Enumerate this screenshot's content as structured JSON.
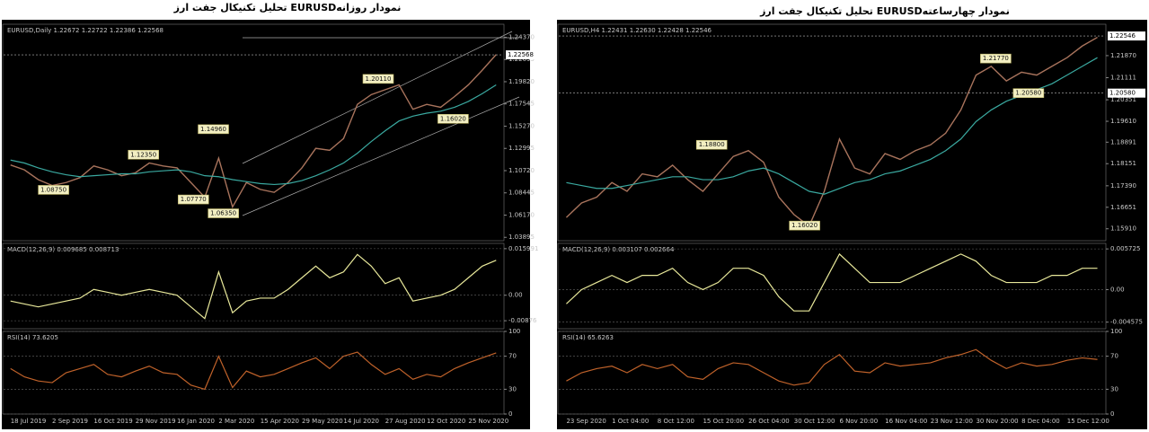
{
  "chart_data": [
    {
      "type": "line",
      "title": "تحلیل تکنیکال جفت ارز  EURUSDنمودار روزانه",
      "categories": [
        "18 Jul 2019",
        null,
        null,
        "2 Sep 2019",
        null,
        null,
        "16 Oct 2019",
        null,
        null,
        "29 Nov 2019",
        null,
        null,
        "16 Jan 2020",
        null,
        null,
        "2 Mar 2020",
        null,
        null,
        "15 Apr 2020",
        null,
        null,
        "29 May 2020",
        null,
        null,
        "14 Jul 2020",
        null,
        null,
        "27 Aug 2020",
        null,
        null,
        "12 Oct 2020",
        null,
        null,
        "25 Nov 2020",
        null,
        null
      ],
      "panes": [
        {
          "header": "EURUSD,Daily  1.22672 1.22722 1.22386 1.22568",
          "ylim": [
            1.0355,
            1.257
          ],
          "yticks": [
            {
              "value": 1.2437,
              "label": "1.24370"
            },
            1.22095,
            {
              "value": 1.1982,
              "label": "1.19820"
            },
            1.17545,
            {
              "value": 1.1527,
              "label": "1.15270"
            },
            1.12995,
            {
              "value": 1.1072,
              "label": "1.10720"
            },
            1.08445,
            {
              "value": 1.0617,
              "label": "1.06170"
            },
            1.03895
          ],
          "grid": false,
          "series": [
            {
              "color": "#a8735c",
              "values": [
                1.113,
                1.108,
                1.098,
                1.092,
                1.095,
                1.1,
                1.112,
                1.108,
                1.102,
                1.105,
                1.115,
                1.112,
                1.11,
                1.095,
                1.08,
                1.12,
                1.07,
                1.095,
                1.088,
                1.085,
                1.095,
                1.11,
                1.13,
                1.128,
                1.14,
                1.175,
                1.185,
                1.19,
                1.195,
                1.17,
                1.175,
                1.172,
                1.183,
                1.195,
                1.21,
                1.226
              ]
            },
            {
              "color": "#3aa9a0",
              "values": [
                1.118,
                1.115,
                1.11,
                1.106,
                1.103,
                1.101,
                1.102,
                1.103,
                1.104,
                1.104,
                1.106,
                1.107,
                1.108,
                1.106,
                1.102,
                1.101,
                1.098,
                1.096,
                1.094,
                1.093,
                1.094,
                1.097,
                1.102,
                1.108,
                1.115,
                1.125,
                1.137,
                1.148,
                1.158,
                1.163,
                1.166,
                1.168,
                1.172,
                1.178,
                1.186,
                1.195
              ]
            }
          ],
          "annotations": [
            {
              "value": 1.0875,
              "label": "1.08750"
            },
            {
              "value": 1.1235,
              "label": "1.12350"
            },
            {
              "value": 1.1496,
              "label": "1.14960"
            },
            {
              "value": 1.0777,
              "label": "1.07770"
            },
            {
              "value": 1.0635,
              "label": "1.06350"
            },
            {
              "value": 1.2011,
              "label": "1.20110"
            },
            {
              "value": 1.1602,
              "label": "1.16020"
            }
          ],
          "levels": [
            1.22568
          ]
        },
        {
          "header": "MACD(12,26,9) 0.009685 0.008713",
          "ylim": [
            -0.0115,
            0.0178
          ],
          "yticks": [
            0.015991,
            {
              "value": 0,
              "label": "0.00"
            },
            -0.00876
          ],
          "grid": true,
          "series": [
            {
              "color": "#e8e89a",
              "values": [
                -0.002,
                -0.003,
                -0.004,
                -0.003,
                -0.002,
                -0.001,
                0.002,
                0.001,
                0.0,
                0.001,
                0.002,
                0.001,
                0.0,
                -0.004,
                -0.008,
                0.008,
                -0.006,
                -0.002,
                -0.001,
                -0.001,
                0.002,
                0.006,
                0.01,
                0.006,
                0.008,
                0.014,
                0.01,
                0.004,
                0.006,
                -0.002,
                -0.001,
                0.0,
                0.002,
                0.006,
                0.01,
                0.012
              ]
            }
          ]
        },
        {
          "header": "RSI(14) 73.6205",
          "ylim": [
            0,
            100
          ],
          "yticks": [
            100,
            70,
            30,
            0
          ],
          "grid": true,
          "series": [
            {
              "color": "#c0622a",
              "values": [
                55,
                45,
                40,
                38,
                50,
                55,
                60,
                48,
                45,
                52,
                58,
                50,
                48,
                35,
                30,
                70,
                32,
                52,
                45,
                48,
                55,
                62,
                68,
                55,
                70,
                75,
                60,
                48,
                55,
                42,
                48,
                45,
                55,
                62,
                68,
                74
              ]
            }
          ]
        }
      ]
    },
    {
      "type": "line",
      "title": "تحلیل تکنیکال جفت ارز  EURUSDنمودار چهارساعته",
      "categories": [
        "23 Sep 2020",
        null,
        null,
        "1 Oct 04:00",
        null,
        null,
        "8 Oct 12:00",
        null,
        null,
        "15 Oct 20:00",
        null,
        null,
        "26 Oct 04:00",
        null,
        null,
        "30 Oct 12:00",
        null,
        null,
        "6 Nov 20:00",
        null,
        null,
        "16 Nov 04:00",
        null,
        null,
        "23 Nov 12:00",
        null,
        null,
        "30 Nov 20:00",
        null,
        null,
        "8 Dec 04:00",
        null,
        null,
        "15 Dec 12:00",
        null,
        null
      ],
      "panes": [
        {
          "header": "EURUSD,H4  1.22431 1.22630 1.22428 1.22546",
          "ylim": [
            1.155,
            1.2295
          ],
          "yticks": [
            {
              "value": 1.2187,
              "label": "1.21870"
            },
            1.21111,
            1.20351,
            {
              "value": 1.1961,
              "label": "1.19610"
            },
            1.18891,
            1.18151,
            {
              "value": 1.1739,
              "label": "1.17390"
            },
            1.16651,
            {
              "value": 1.1591,
              "label": "1.15910"
            }
          ],
          "grid": false,
          "series": [
            {
              "color": "#a8735c",
              "values": [
                1.163,
                1.168,
                1.17,
                1.175,
                1.172,
                1.178,
                1.177,
                1.181,
                1.176,
                1.172,
                1.178,
                1.184,
                1.186,
                1.182,
                1.17,
                1.164,
                1.16,
                1.172,
                1.19,
                1.18,
                1.178,
                1.185,
                1.183,
                1.186,
                1.188,
                1.192,
                1.2,
                1.212,
                1.215,
                1.21,
                1.213,
                1.212,
                1.215,
                1.218,
                1.222,
                1.225
              ]
            },
            {
              "color": "#3aa9a0",
              "values": [
                1.175,
                1.174,
                1.173,
                1.173,
                1.174,
                1.175,
                1.176,
                1.177,
                1.177,
                1.176,
                1.176,
                1.177,
                1.179,
                1.18,
                1.178,
                1.175,
                1.172,
                1.171,
                1.173,
                1.175,
                1.176,
                1.178,
                1.179,
                1.181,
                1.183,
                1.186,
                1.19,
                1.196,
                1.2,
                1.203,
                1.205,
                1.207,
                1.209,
                1.212,
                1.215,
                1.218
              ]
            }
          ],
          "annotations": [
            {
              "value": 1.2177,
              "label": "1.21770"
            },
            {
              "value": 1.2058,
              "label": "1.20580"
            },
            {
              "value": 1.188,
              "label": "1.18800"
            },
            {
              "value": 1.1602,
              "label": "1.16020"
            }
          ],
          "levels": [
            1.22546,
            {
              "value": 1.2058,
              "label": "1.20580"
            }
          ]
        },
        {
          "header": "MACD(12,26,9) 0.003107 0.002664",
          "ylim": [
            -0.0055,
            0.0065
          ],
          "yticks": [
            0.005725,
            {
              "value": 0,
              "label": "0.00"
            },
            -0.004575
          ],
          "grid": true,
          "series": [
            {
              "color": "#e8e89a",
              "values": [
                -0.002,
                0.0,
                0.001,
                0.002,
                0.001,
                0.002,
                0.002,
                0.003,
                0.001,
                0.0,
                0.001,
                0.003,
                0.003,
                0.002,
                -0.001,
                -0.003,
                -0.003,
                0.001,
                0.005,
                0.003,
                0.001,
                0.001,
                0.001,
                0.002,
                0.003,
                0.004,
                0.005,
                0.004,
                0.002,
                0.001,
                0.001,
                0.001,
                0.002,
                0.002,
                0.003,
                0.003
              ]
            }
          ]
        },
        {
          "header": "RSI(14) 65.6263",
          "ylim": [
            0,
            100
          ],
          "yticks": [
            100,
            70,
            30,
            0
          ],
          "grid": true,
          "series": [
            {
              "color": "#c0622a",
              "values": [
                40,
                50,
                55,
                58,
                50,
                60,
                55,
                60,
                45,
                42,
                55,
                62,
                60,
                50,
                40,
                35,
                38,
                60,
                72,
                52,
                50,
                62,
                58,
                60,
                62,
                68,
                72,
                78,
                65,
                55,
                62,
                58,
                60,
                65,
                68,
                66
              ]
            }
          ]
        }
      ]
    }
  ]
}
